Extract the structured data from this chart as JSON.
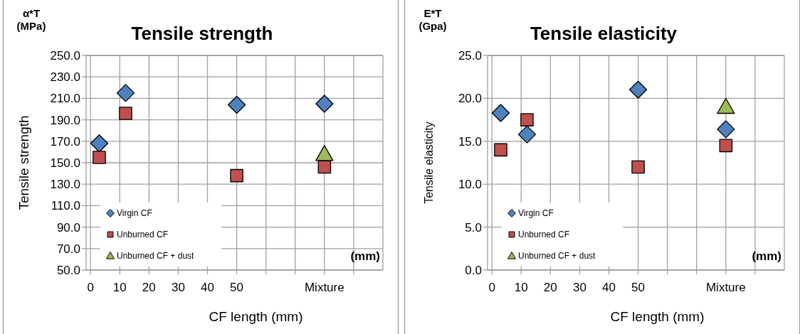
{
  "chart_data": [
    {
      "type": "scatter",
      "title": "Tensile strength",
      "xlabel": "CF length (mm)",
      "ylabel": "Tensile strength",
      "annotations": [
        "α*T\n(MPa)",
        "(mm)"
      ],
      "xlim": [
        -1.5,
        100
      ],
      "xticks": [
        0,
        10,
        20,
        30,
        40,
        50,
        {
          "value": 60,
          "label": null
        },
        {
          "value": 70,
          "label": null
        },
        {
          "value": 80,
          "label": "Mixture"
        },
        {
          "value": 90,
          "label": null
        }
      ],
      "ylim": [
        50,
        250
      ],
      "yticks": [
        {
          "value": 50,
          "label": "50.0"
        },
        {
          "value": 70,
          "label": "70.0"
        },
        {
          "value": 90,
          "label": "90.0"
        },
        {
          "value": 110,
          "label": "110.0"
        },
        {
          "value": 130,
          "label": "130.0"
        },
        {
          "value": 150,
          "label": "150.0"
        },
        {
          "value": 170,
          "label": "170.0"
        },
        {
          "value": 190,
          "label": "190.0"
        },
        {
          "value": 210,
          "label": "210.0"
        },
        {
          "value": 230,
          "label": "230.0"
        },
        {
          "value": 250,
          "label": "250.0"
        }
      ],
      "grid": true,
      "legend": "bottom left",
      "series": [
        {
          "name": "Virgin CF",
          "color": "#4f81bd",
          "marker": "diamond",
          "x": [
            3,
            12,
            50,
            80
          ],
          "values": [
            168,
            215,
            204,
            205
          ]
        },
        {
          "name": "Unburned CF",
          "color": "#c0504d",
          "marker": "square",
          "x": [
            3,
            12,
            50,
            80
          ],
          "values": [
            155,
            196,
            138,
            146
          ]
        },
        {
          "name": "Unburned CF + dust",
          "color": "#9bbb59",
          "marker": "triangle",
          "x": [
            80
          ],
          "values": [
            158
          ]
        }
      ]
    },
    {
      "type": "scatter",
      "title": "Tensile elasticity",
      "xlabel": "CF length (mm)",
      "ylabel": "Tensile  elasticity",
      "annotations": [
        "E*T\n(Gpa)",
        "(mm)"
      ],
      "xlim": [
        -1.5,
        100
      ],
      "xticks": [
        0,
        10,
        20,
        30,
        40,
        50,
        {
          "value": 60,
          "label": null
        },
        {
          "value": 70,
          "label": null
        },
        {
          "value": 80,
          "label": "Mixture"
        },
        {
          "value": 90,
          "label": null
        }
      ],
      "ylim": [
        0,
        25
      ],
      "yticks": [
        {
          "value": 0,
          "label": "0.0"
        },
        {
          "value": 5,
          "label": "5.0"
        },
        {
          "value": 10,
          "label": "10.0"
        },
        {
          "value": 15,
          "label": "15.0"
        },
        {
          "value": 20,
          "label": "20.0"
        },
        {
          "value": 25,
          "label": "25.0"
        }
      ],
      "grid": true,
      "legend": "bottom left",
      "series": [
        {
          "name": "Virgin CF",
          "color": "#4f81bd",
          "marker": "diamond",
          "x": [
            3,
            12,
            50,
            80
          ],
          "values": [
            18.3,
            15.8,
            21.0,
            16.4
          ]
        },
        {
          "name": "Unburned CF",
          "color": "#c0504d",
          "marker": "square",
          "x": [
            3,
            12,
            50,
            80
          ],
          "values": [
            14.0,
            17.5,
            12.0,
            14.5
          ]
        },
        {
          "name": "Unburned CF + dust",
          "color": "#9bbb59",
          "marker": "triangle",
          "x": [
            80
          ],
          "values": [
            19.0
          ]
        }
      ]
    }
  ]
}
